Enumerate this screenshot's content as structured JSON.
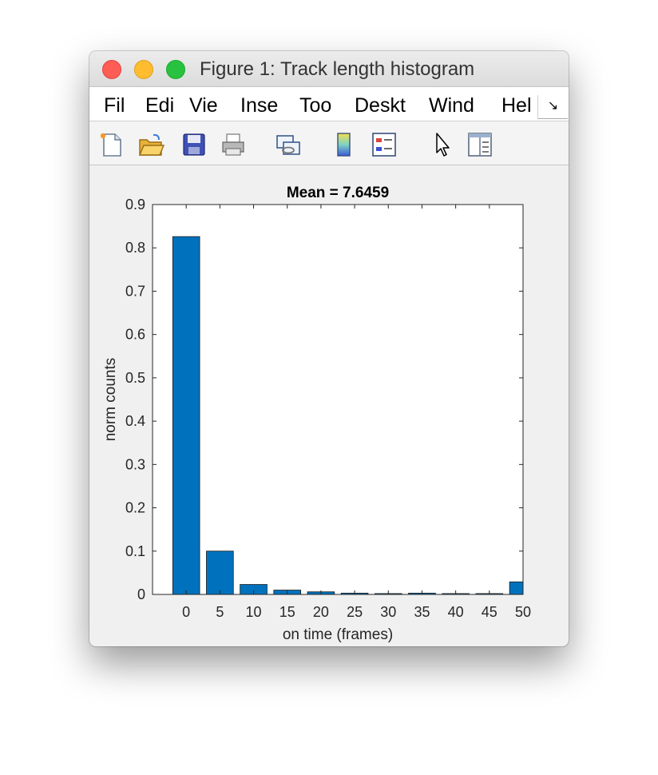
{
  "window": {
    "title": "Figure 1: Track length histogram"
  },
  "menu": {
    "items": [
      {
        "label": "File",
        "shown": "Fil"
      },
      {
        "label": "Edit",
        "shown": "Edi"
      },
      {
        "label": "View",
        "shown": "Vie"
      },
      {
        "label": "Insert",
        "shown": "Inse"
      },
      {
        "label": "Tools",
        "shown": "Too"
      },
      {
        "label": "Desktop",
        "shown": "Deskt"
      },
      {
        "label": "Window",
        "shown": "Wind"
      },
      {
        "label": "Help",
        "shown": "Hel"
      }
    ],
    "overflow_symbol": "↘"
  },
  "toolbar": {
    "icons": [
      "new-figure-icon",
      "open-file-icon",
      "save-icon",
      "print-icon",
      "link-plot-icon",
      "colorbar-icon",
      "legend-icon",
      "edit-plot-arrow-icon",
      "property-inspector-icon"
    ]
  },
  "chart_data": {
    "type": "bar",
    "title": "Mean = 7.6459",
    "xlabel": "on time (frames)",
    "ylabel": "norm counts",
    "bar_color": "#0072bd",
    "x": [
      0,
      5,
      10,
      15,
      20,
      25,
      30,
      35,
      40,
      45,
      50
    ],
    "values": [
      0.826,
      0.1,
      0.023,
      0.01,
      0.006,
      0.003,
      0.002,
      0.003,
      0.002,
      0.002,
      0.029
    ],
    "xlim": [
      -5,
      50
    ],
    "ylim": [
      0,
      0.9
    ],
    "xticks": [
      "0",
      "5",
      "10",
      "15",
      "20",
      "25",
      "30",
      "35",
      "40",
      "45",
      "50"
    ],
    "yticks": [
      "0",
      "0.1",
      "0.2",
      "0.3",
      "0.4",
      "0.5",
      "0.6",
      "0.7",
      "0.8",
      "0.9"
    ],
    "grid": false,
    "legend": false
  }
}
